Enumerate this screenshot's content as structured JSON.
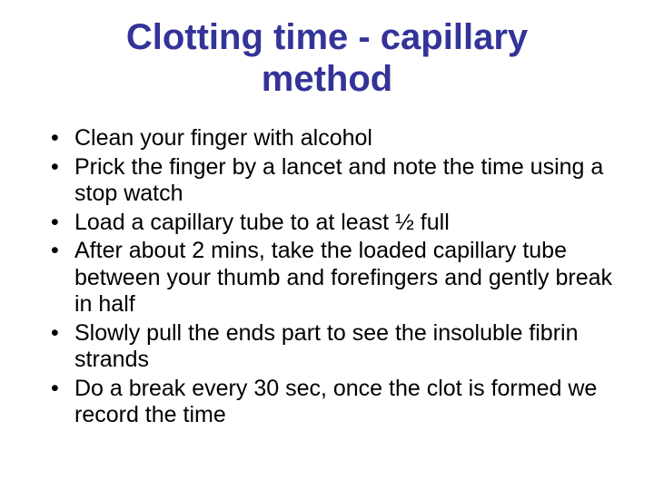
{
  "slide": {
    "title": "Clotting time - capillary method",
    "bullets": [
      "Clean your finger with alcohol",
      "Prick the finger by a lancet and note the time using a stop watch",
      "Load a capillary tube to at least ½ full",
      "After about 2 mins, take the loaded capillary tube between your thumb and forefingers and gently break in half",
      "Slowly pull the ends part to see the insoluble fibrin strands",
      "Do a break every 30 sec, once the clot is formed we record the time"
    ],
    "styling": {
      "background_color": "#ffffff",
      "title_color": "#333399",
      "title_fontsize": 40,
      "title_fontweight": "bold",
      "title_alignment": "center",
      "body_color": "#000000",
      "body_fontsize": 25,
      "bullet_marker": "•",
      "font_family": "Arial"
    }
  }
}
